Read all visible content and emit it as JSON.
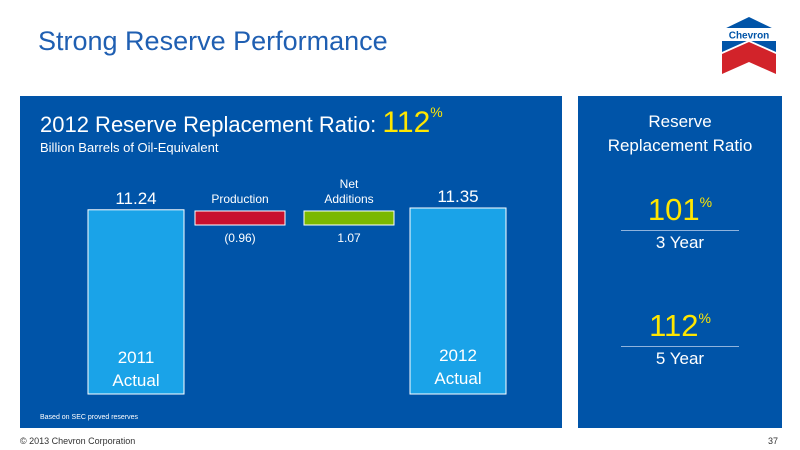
{
  "slide": {
    "title": "Strong Reserve Performance",
    "page_number": "37",
    "copyright": "© 2013 Chevron Corporation",
    "logo_text": "Chevron"
  },
  "main_panel": {
    "title_prefix": "2012 Reserve Replacement Ratio: ",
    "title_value": "112",
    "title_unit": "%",
    "subtitle": "Billion Barrels of Oil-Equivalent",
    "footnote": "Based on SEC proved reserves"
  },
  "side_panel": {
    "title_line1": "Reserve",
    "title_line2": "Replacement Ratio",
    "stats": [
      {
        "value": "101",
        "unit": "%",
        "label": "3 Year"
      },
      {
        "value": "112",
        "unit": "%",
        "label": "5 Year"
      }
    ]
  },
  "colors": {
    "panel_bg": "#0054a8",
    "actual_bar": "#1aa3e8",
    "production_bar": "#c8102e",
    "net_additions_bar": "#7ab800",
    "highlight_text": "#ffe600"
  },
  "chart_data": {
    "type": "bar",
    "subtype": "waterfall",
    "categories": [
      "2011 Actual",
      "Production",
      "Net Additions",
      "2012 Actual"
    ],
    "bars": [
      {
        "category_lines": [
          "2011",
          "Actual"
        ],
        "value": 11.24,
        "value_label": "11.24",
        "kind": "total"
      },
      {
        "category_lines": [
          "Production"
        ],
        "value": -0.96,
        "value_label": "(0.96)",
        "kind": "decrease"
      },
      {
        "category_lines": [
          "Net",
          "Additions"
        ],
        "value": 1.07,
        "value_label": "1.07",
        "kind": "increase"
      },
      {
        "category_lines": [
          "2012",
          "Actual"
        ],
        "value": 11.35,
        "value_label": "11.35",
        "kind": "total"
      }
    ],
    "title": "2012 Reserve Replacement Ratio: 112%",
    "ylabel": "Billion Barrels of Oil-Equivalent",
    "grid": false,
    "legend": "none"
  }
}
